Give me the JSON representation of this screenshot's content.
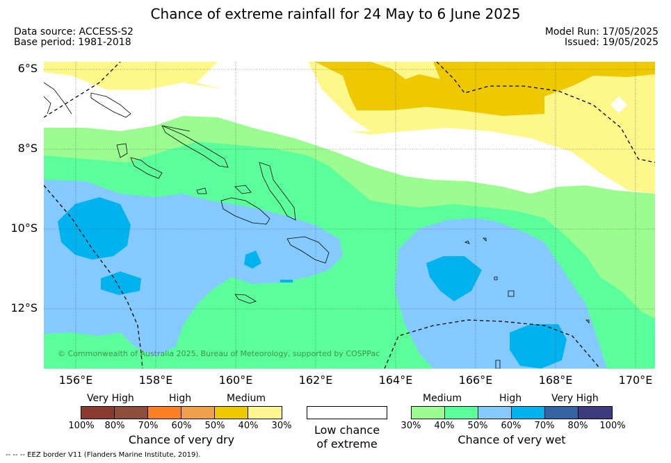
{
  "title": "Chance of extreme rainfall for 24 May to 6 June 2025",
  "data_source": "Data source: ACCESS-S2",
  "base_period": "Base period: 1981-2018",
  "model_run": "Model Run: 17/05/2025",
  "issued": "Issued: 19/05/2025",
  "map": {
    "lat_labels": [
      "6°S",
      "8°S",
      "10°S",
      "12°S"
    ],
    "lon_labels": [
      "156°E",
      "158°E",
      "160°E",
      "162°E",
      "164°E",
      "166°E",
      "168°E",
      "170°E"
    ],
    "copyright": "© Commonwealth of Australia 2025, Bureau of Meteorology, supported by COSPPac",
    "colors": {
      "very_wet_30_40": "#9bfc8f",
      "very_wet_40_50": "#5afe9a",
      "very_wet_50_60": "#84caff",
      "very_wet_60_70": "#00b2ee",
      "dry_30_40": "#fef78a",
      "dry_40_50": "#eec800",
      "low_chance": "#ffffff"
    }
  },
  "legend_dry": {
    "levels": [
      "Very High",
      "High",
      "Medium"
    ],
    "ticks": [
      "100%",
      "80%",
      "70%",
      "60%",
      "50%",
      "40%",
      "30%"
    ],
    "caption": "Chance of very dry",
    "colors": [
      "#8b3a32",
      "#8e4e3c",
      "#ff7f24",
      "#eea04a",
      "#eec800",
      "#fff68f"
    ]
  },
  "legend_low": {
    "caption_line1": "Low chance",
    "caption_line2": "of extreme",
    "color": "#ffffff"
  },
  "legend_wet": {
    "levels": [
      "Medium",
      "High",
      "Very High"
    ],
    "ticks": [
      "30%",
      "40%",
      "50%",
      "60%",
      "70%",
      "80%",
      "100%"
    ],
    "caption": "Chance of very wet",
    "colors": [
      "#9bfc8f",
      "#5afe9a",
      "#84caff",
      "#00b2ee",
      "#3464a4",
      "#3d3a7e"
    ]
  },
  "footnote": "--  --  -- EEZ border V11 (Flanders Marine Institute, 2019)."
}
